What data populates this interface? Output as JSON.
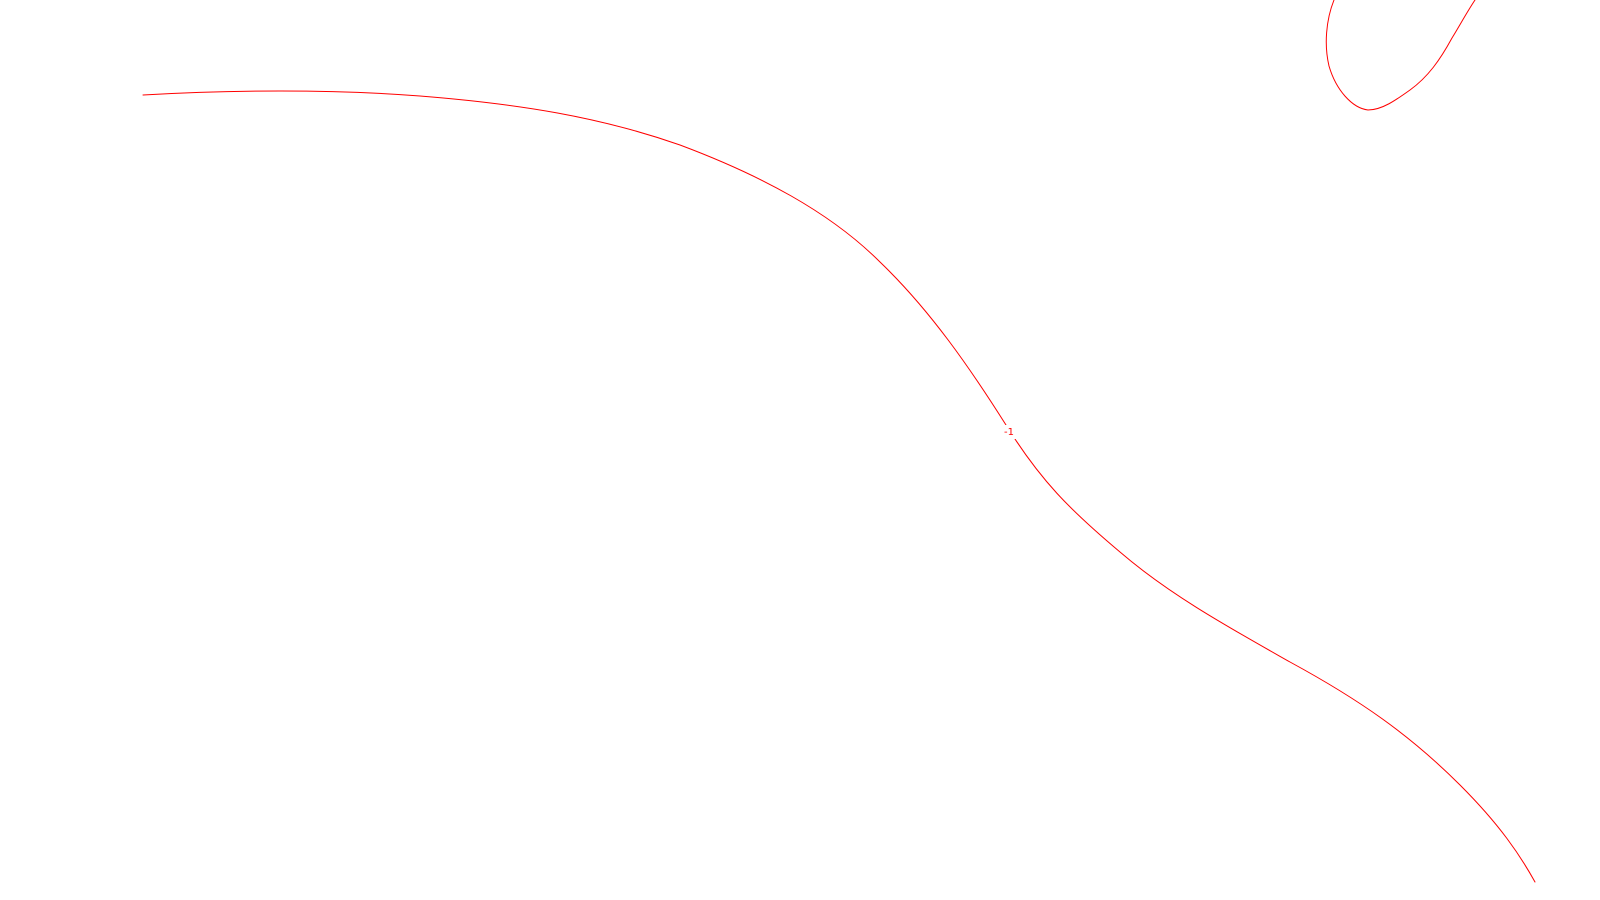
{
  "figure": {
    "background_color": "#ffffff",
    "line_color": "#ff0000",
    "contour_levels": [
      {
        "label": "-1"
      }
    ]
  }
}
